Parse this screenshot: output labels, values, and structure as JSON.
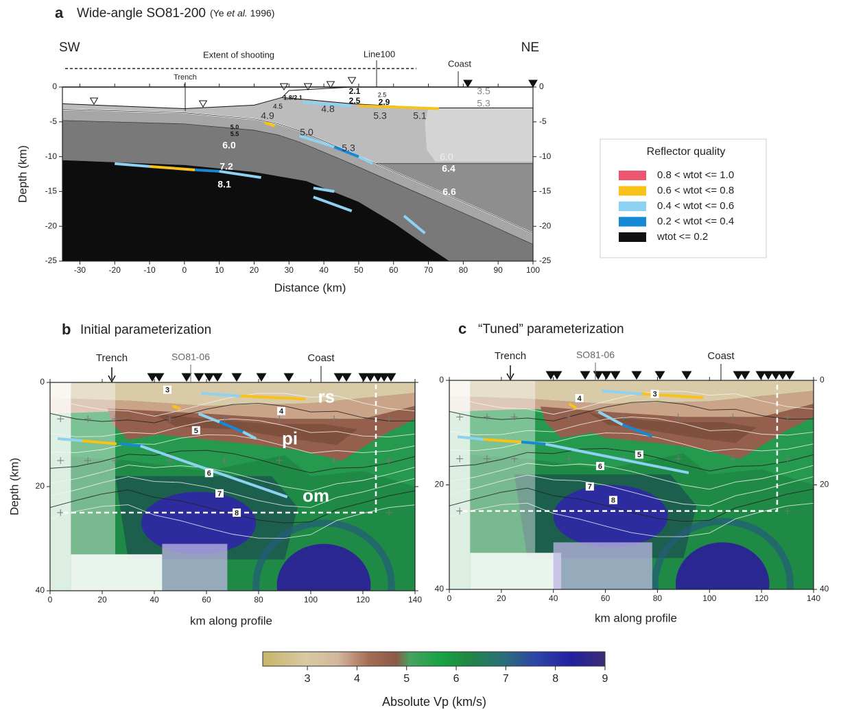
{
  "panel_a": {
    "letter": "a",
    "title": "Wide-angle SO81-200",
    "citation_pre": "(Ye ",
    "citation_em": "et al.",
    "citation_post": " 1996)",
    "side_left": "SW",
    "side_right": "NE",
    "extent_label": "Extent of shooting",
    "line_label": "Line100",
    "coast_label": "Coast",
    "trench_label": "Trench",
    "x_label": "Distance (km)",
    "y_label": "Depth (km)",
    "xlim": [
      -35,
      100
    ],
    "xticks": [
      -30,
      -20,
      -10,
      0,
      10,
      20,
      30,
      40,
      50,
      60,
      70,
      80,
      90,
      100
    ],
    "ylim": [
      -25,
      0
    ],
    "yticks": [
      0,
      -5,
      -10,
      -15,
      -20,
      -25
    ],
    "velocity_labels": [
      "2.1",
      "2.5",
      "2.5",
      "2.9",
      "3.5",
      "5.3",
      "1.8/2.1",
      "4.5",
      "4.8",
      "5.3",
      "5.1",
      "4.9",
      "5.0",
      "5.5",
      "5.0",
      "5.3",
      "6.0",
      "6.0",
      "6.4",
      "7.2",
      "8.1",
      "6.6"
    ]
  },
  "legend": {
    "title": "Reflector quality",
    "entries": [
      {
        "label": "0.8 < wtot <= 1.0",
        "color": "#ec5470"
      },
      {
        "label": "0.6 < wtot <= 0.8",
        "color": "#f8c21a"
      },
      {
        "label": "0.4 < wtot <= 0.6",
        "color": "#8dd2f1"
      },
      {
        "label": "0.2 < wtot <= 0.4",
        "color": "#1589d6"
      },
      {
        "label": "wtot <= 0.2",
        "color": "#111111"
      }
    ]
  },
  "panel_b": {
    "letter": "b",
    "title": "Initial parameterization",
    "trench_label": "Trench",
    "line_label": "SO81-06",
    "coast_label": "Coast",
    "x_label": "km along profile",
    "y_label": "Depth (km)",
    "xlim": [
      0,
      140
    ],
    "xticks": [
      0,
      20,
      40,
      60,
      80,
      100,
      120,
      140
    ],
    "ylim": [
      0,
      40
    ],
    "yticks": [
      0,
      20,
      40
    ],
    "y_inverted": true,
    "contour_labels": [
      "3",
      "4",
      "5",
      "6",
      "7",
      "8"
    ],
    "layer_labels": [
      "rs",
      "pi",
      "om"
    ]
  },
  "panel_c": {
    "letter": "c",
    "title": "“Tuned” parameterization",
    "trench_label": "Trench",
    "line_label": "SO81-06",
    "coast_label": "Coast",
    "x_label": "km along profile",
    "xlim": [
      0,
      140
    ],
    "xticks": [
      0,
      20,
      40,
      60,
      80,
      100,
      120,
      140
    ],
    "ylim": [
      0,
      40
    ],
    "yticks": [
      0,
      20,
      40
    ],
    "y_inverted": true,
    "contour_labels": [
      "4",
      "3",
      "5",
      "6",
      "7",
      "8"
    ]
  },
  "colorbar": {
    "lim": [
      2.1,
      9
    ],
    "ticks": [
      3,
      4,
      5,
      6,
      7,
      8,
      9
    ],
    "label": "Absolute  Vp  (km/s)"
  }
}
